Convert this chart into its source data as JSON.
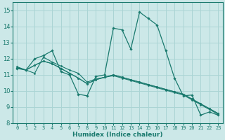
{
  "xlabel": "Humidex (Indice chaleur)",
  "bg_color": "#cce8e8",
  "grid_color": "#aad4d4",
  "line_color": "#1a7a6e",
  "xlim": [
    -0.5,
    23.5
  ],
  "ylim": [
    8,
    15.5
  ],
  "yticks": [
    8,
    9,
    10,
    11,
    12,
    13,
    14,
    15
  ],
  "xticks": [
    0,
    1,
    2,
    3,
    4,
    5,
    6,
    7,
    8,
    9,
    10,
    11,
    12,
    13,
    14,
    15,
    16,
    17,
    18,
    19,
    20,
    21,
    22,
    23
  ],
  "series_main": [
    11.4,
    11.3,
    12.0,
    12.2,
    12.5,
    11.2,
    11.0,
    9.8,
    9.7,
    10.9,
    11.0,
    13.9,
    13.8,
    12.6,
    14.9,
    14.5,
    14.1,
    12.5,
    10.8,
    9.7,
    9.75,
    8.5,
    8.7,
    8.5
  ],
  "series_reg1": [
    11.5,
    11.3,
    11.1,
    12.1,
    11.8,
    11.55,
    11.3,
    11.1,
    10.55,
    10.75,
    10.85,
    10.95,
    10.8,
    10.65,
    10.5,
    10.35,
    10.2,
    10.05,
    9.9,
    9.75,
    9.45,
    9.15,
    8.85,
    8.55
  ],
  "series_reg2": [
    11.45,
    11.3,
    11.6,
    11.85,
    11.7,
    11.4,
    11.1,
    10.8,
    10.45,
    10.7,
    10.85,
    11.0,
    10.85,
    10.7,
    10.55,
    10.4,
    10.25,
    10.1,
    9.95,
    9.8,
    9.5,
    9.2,
    8.9,
    8.6
  ],
  "series_reg3": [
    11.45,
    11.3,
    11.6,
    11.85,
    11.7,
    11.4,
    11.1,
    10.8,
    10.45,
    10.7,
    10.85,
    11.0,
    10.85,
    10.7,
    10.55,
    10.4,
    10.25,
    10.1,
    9.95,
    9.8,
    9.5,
    9.2,
    8.9,
    8.6
  ]
}
